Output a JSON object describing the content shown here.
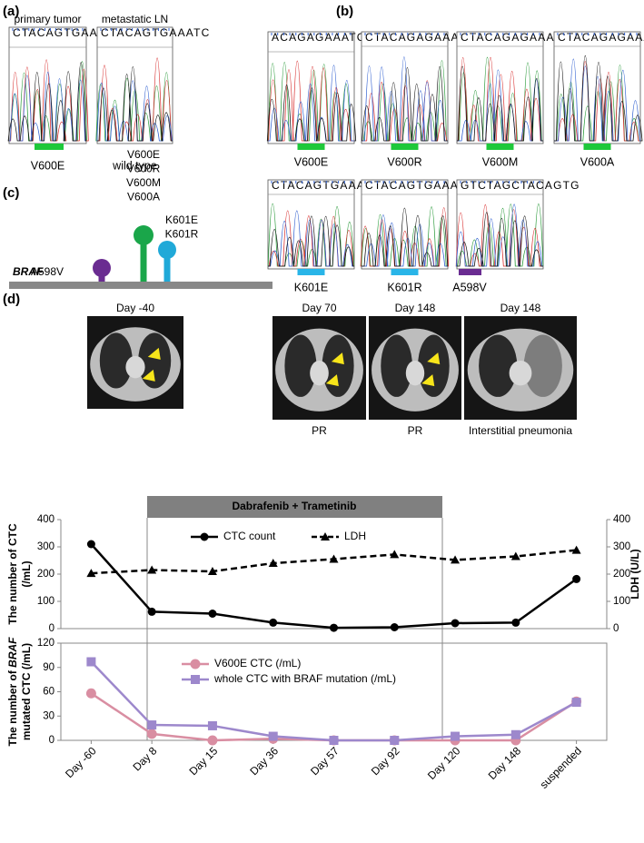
{
  "panels": {
    "a": {
      "label": "(a)",
      "samples": [
        {
          "title": "primary tumor",
          "sequence": "CTACAGTGAAATC",
          "result": "V600E"
        },
        {
          "title": "metastatic LN",
          "sequence": "CTACAGTGAAATC",
          "result": "wild type"
        }
      ]
    },
    "b": {
      "label": "(b)",
      "samples": [
        {
          "sequence": "ACAGAGAAATC",
          "result": "V600E"
        },
        {
          "sequence": "CTACAGAGAAATC",
          "result": "V600R"
        },
        {
          "sequence": "CTACAGAGAAATC",
          "result": "V600M"
        },
        {
          "sequence": "CTACAGAGAAATC",
          "result": "V600A"
        },
        {
          "sequence": "CTACAGTGAAATC",
          "result": "K601E"
        },
        {
          "sequence": "CTACAGTGAAATC",
          "result": "K601R"
        },
        {
          "sequence": "GTCTAGCTACAGTG",
          "result": "A598V"
        }
      ]
    },
    "c": {
      "label": "(c)",
      "gene": "BRAF",
      "sites": [
        {
          "mutations": [
            "A598V"
          ],
          "color": "#6a2c91"
        },
        {
          "mutations": [
            "V600E",
            "V600R",
            "V600M",
            "V600A"
          ],
          "color": "#1aa64a"
        },
        {
          "mutations": [
            "K601E",
            "K601R"
          ],
          "color": "#20a9d8"
        }
      ]
    },
    "d": {
      "label": "(d)",
      "treatment": "Dabrafenib + Trametinib",
      "scans": [
        {
          "day": "Day -40"
        },
        {
          "day": "Day 70",
          "response": "PR"
        },
        {
          "day": "Day 148",
          "response": "PR"
        },
        {
          "day": "Day 148",
          "response": "Interstitial pneumonia"
        }
      ]
    }
  },
  "chart_data": [
    {
      "type": "line",
      "ylabel": [
        [
          {
            "text": "The number of CTC"
          }
        ],
        [
          {
            "text": "(/mL)"
          }
        ]
      ],
      "y2label": "LDH (U/L)",
      "ylim": [
        0,
        400
      ],
      "yticks": [
        0,
        100,
        200,
        300,
        400
      ],
      "y2lim": [
        0,
        400
      ],
      "y2ticks": [
        0,
        100,
        200,
        300,
        400
      ],
      "series": [
        {
          "name": "CTC count",
          "color": "#000000",
          "marker": "circle",
          "dash": false,
          "values": [
            310,
            62,
            55,
            22,
            3,
            5,
            20,
            22,
            182
          ]
        },
        {
          "name": "LDH",
          "color": "#000000",
          "marker": "triangle",
          "dash": true,
          "axis": "y2",
          "values": [
            203,
            215,
            210,
            240,
            255,
            272,
            252,
            265,
            288
          ]
        }
      ]
    },
    {
      "type": "line",
      "ylabel": [
        [
          {
            "text": "The number of "
          },
          {
            "text": "BRAF",
            "italic": true
          }
        ],
        [
          {
            "text": "mutated CTC (/mL)"
          }
        ]
      ],
      "categories": [
        "Day -60",
        "Day 8",
        "Day 15",
        "Day 36",
        "Day 57",
        "Day 92",
        "Day 120",
        "Day 148",
        "suspended"
      ],
      "ylim": [
        0,
        120
      ],
      "yticks": [
        0,
        30,
        60,
        90,
        120
      ],
      "series": [
        {
          "name": "V600E CTC (/mL)",
          "color": "#d98ea2",
          "marker": "circle",
          "dash": false,
          "values": [
            58,
            8,
            0,
            2,
            0,
            0,
            0,
            0,
            48
          ]
        },
        {
          "name": "whole CTC with BRAF mutation (/mL)",
          "color": "#9d88cc",
          "marker": "square",
          "dash": false,
          "values": [
            97,
            19,
            18,
            5,
            0,
            0,
            5,
            7,
            47
          ]
        }
      ]
    }
  ]
}
